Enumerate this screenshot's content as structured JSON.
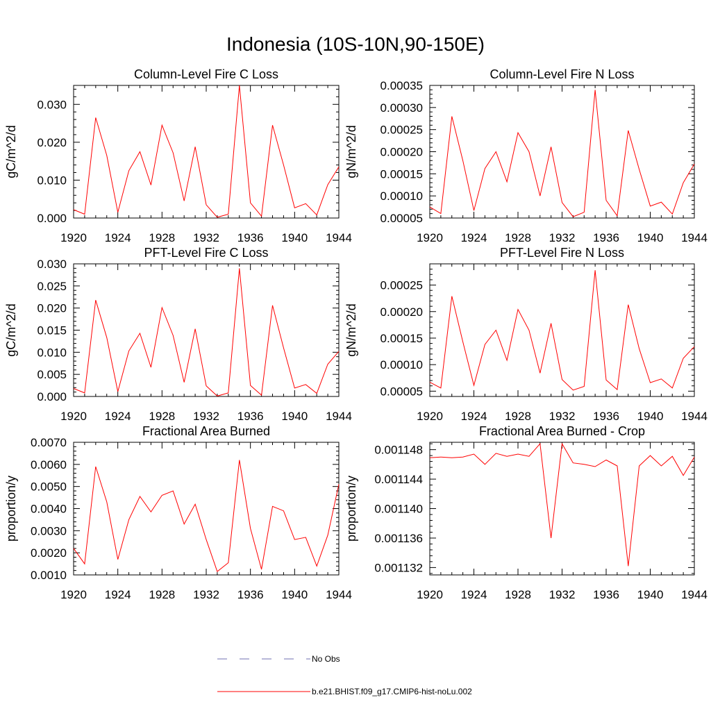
{
  "figure": {
    "title": "Indonesia (10S-10N,90-150E)"
  },
  "colors": {
    "model": "#ff0000",
    "obs": "#6f6fb0",
    "axis": "#000000"
  },
  "legend": {
    "items": [
      {
        "label": "No Obs",
        "style": "dashed",
        "color": "#6f6fb0"
      },
      {
        "label": "b.e21.BHIST.f09_g17.CMIP6-hist-noLu.002",
        "style": "solid",
        "color": "#ff0000"
      }
    ]
  },
  "chart_data": [
    {
      "type": "line",
      "title": "Column-Level Fire C Loss",
      "ylabel": "gC/m^2/d",
      "xlim": [
        1920,
        1944
      ],
      "ylim": [
        0.0,
        0.035
      ],
      "xticks": [
        1920,
        1924,
        1928,
        1932,
        1936,
        1940,
        1944
      ],
      "xtick_labels": [
        "1920",
        "1924",
        "1928",
        "1932",
        "1936",
        "1940",
        "1944"
      ],
      "yticks": [
        0.0,
        0.01,
        0.02,
        0.03
      ],
      "ytick_labels": [
        "0.000",
        "0.010",
        "0.020",
        "0.030"
      ],
      "x": [
        1920,
        1921,
        1922,
        1923,
        1924,
        1925,
        1926,
        1927,
        1928,
        1929,
        1930,
        1931,
        1932,
        1933,
        1934,
        1935,
        1936,
        1937,
        1938,
        1939,
        1940,
        1941,
        1942,
        1943,
        1944
      ],
      "series": [
        {
          "values": [
            0.0022,
            0.001,
            0.0265,
            0.0165,
            0.0015,
            0.0125,
            0.0175,
            0.0087,
            0.0245,
            0.0172,
            0.0045,
            0.0188,
            0.0035,
            0.0002,
            0.001,
            0.035,
            0.004,
            0.0005,
            0.0245,
            0.014,
            0.0027,
            0.0038,
            0.0008,
            0.0088,
            0.0135
          ]
        }
      ]
    },
    {
      "type": "line",
      "title": "Column-Level Fire N Loss",
      "ylabel": "gN/m^2/d",
      "xlim": [
        1920,
        1944
      ],
      "ylim": [
        5e-05,
        0.00035
      ],
      "xticks": [
        1920,
        1924,
        1928,
        1932,
        1936,
        1940,
        1944
      ],
      "xtick_labels": [
        "1920",
        "1924",
        "1928",
        "1932",
        "1936",
        "1940",
        "1944"
      ],
      "yticks": [
        5e-05,
        0.0001,
        0.00015,
        0.0002,
        0.00025,
        0.0003,
        0.00035
      ],
      "ytick_labels": [
        "0.00005",
        "0.00010",
        "0.00015",
        "0.00020",
        "0.00025",
        "0.00030",
        "0.00035"
      ],
      "x": [
        1920,
        1921,
        1922,
        1923,
        1924,
        1925,
        1926,
        1927,
        1928,
        1929,
        1930,
        1931,
        1932,
        1933,
        1934,
        1935,
        1936,
        1937,
        1938,
        1939,
        1940,
        1941,
        1942,
        1943,
        1944
      ],
      "series": [
        {
          "values": [
            7.5e-05,
            6e-05,
            0.00028,
            0.00018,
            6.7e-05,
            0.000162,
            0.0002,
            0.000132,
            0.000243,
            0.0002,
            0.0001,
            0.000211,
            8.5e-05,
            5.3e-05,
            6.3e-05,
            0.00034,
            9e-05,
            5.5e-05,
            0.000248,
            0.00016,
            7.7e-05,
            8.6e-05,
            5.9e-05,
            0.00013,
            0.000172
          ]
        }
      ]
    },
    {
      "type": "line",
      "title": "PFT-Level Fire C Loss",
      "ylabel": "gC/m^2/d",
      "xlim": [
        1920,
        1944
      ],
      "ylim": [
        0.0,
        0.03
      ],
      "xticks": [
        1920,
        1924,
        1928,
        1932,
        1936,
        1940,
        1944
      ],
      "xtick_labels": [
        "1920",
        "1924",
        "1928",
        "1932",
        "1936",
        "1940",
        "1944"
      ],
      "yticks": [
        0.0,
        0.005,
        0.01,
        0.015,
        0.02,
        0.025,
        0.03
      ],
      "ytick_labels": [
        "0.000",
        "0.005",
        "0.010",
        "0.015",
        "0.020",
        "0.025",
        "0.030"
      ],
      "x": [
        1920,
        1921,
        1922,
        1923,
        1924,
        1925,
        1926,
        1927,
        1928,
        1929,
        1930,
        1931,
        1932,
        1933,
        1934,
        1935,
        1936,
        1937,
        1938,
        1939,
        1940,
        1941,
        1942,
        1943,
        1944
      ],
      "series": [
        {
          "values": [
            0.0018,
            0.0008,
            0.0218,
            0.0133,
            0.0011,
            0.0103,
            0.0143,
            0.0066,
            0.0201,
            0.0138,
            0.0032,
            0.0153,
            0.0024,
            0.0001,
            0.0008,
            0.029,
            0.0025,
            0.0003,
            0.0206,
            0.011,
            0.0019,
            0.0027,
            0.0007,
            0.0073,
            0.0102
          ]
        }
      ]
    },
    {
      "type": "line",
      "title": "PFT-Level Fire N Loss",
      "ylabel": "gN/m^2/d",
      "xlim": [
        1920,
        1944
      ],
      "ylim": [
        4e-05,
        0.00029
      ],
      "xticks": [
        1920,
        1924,
        1928,
        1932,
        1936,
        1940,
        1944
      ],
      "xtick_labels": [
        "1920",
        "1924",
        "1928",
        "1932",
        "1936",
        "1940",
        "1944"
      ],
      "yticks": [
        5e-05,
        0.0001,
        0.00015,
        0.0002,
        0.00025
      ],
      "ytick_labels": [
        "0.00005",
        "0.00010",
        "0.00015",
        "0.00020",
        "0.00025"
      ],
      "x": [
        1920,
        1921,
        1922,
        1923,
        1924,
        1925,
        1926,
        1927,
        1928,
        1929,
        1930,
        1931,
        1932,
        1933,
        1934,
        1935,
        1936,
        1937,
        1938,
        1939,
        1940,
        1941,
        1942,
        1943,
        1944
      ],
      "series": [
        {
          "values": [
            6.7e-05,
            5.6e-05,
            0.000229,
            0.000143,
            6.1e-05,
            0.000138,
            0.000165,
            0.000108,
            0.000204,
            0.000165,
            8.4e-05,
            0.000178,
            7.2e-05,
            5.2e-05,
            5.9e-05,
            0.000278,
            7.1e-05,
            5.3e-05,
            0.000213,
            0.00013,
            6.6e-05,
            7.3e-05,
            5.6e-05,
            0.000112,
            0.000134
          ]
        }
      ]
    },
    {
      "type": "line",
      "title": "Fractional Area Burned",
      "ylabel": "proportion/y",
      "xlim": [
        1920,
        1944
      ],
      "ylim": [
        0.001,
        0.007
      ],
      "xticks": [
        1920,
        1924,
        1928,
        1932,
        1936,
        1940,
        1944
      ],
      "xtick_labels": [
        "1920",
        "1924",
        "1928",
        "1932",
        "1936",
        "1940",
        "1944"
      ],
      "yticks": [
        0.001,
        0.002,
        0.003,
        0.004,
        0.005,
        0.006,
        0.007
      ],
      "ytick_labels": [
        "0.0010",
        "0.0020",
        "0.0030",
        "0.0040",
        "0.0050",
        "0.0060",
        "0.0070"
      ],
      "x": [
        1920,
        1921,
        1922,
        1923,
        1924,
        1925,
        1926,
        1927,
        1928,
        1929,
        1930,
        1931,
        1932,
        1933,
        1934,
        1935,
        1936,
        1937,
        1938,
        1939,
        1940,
        1941,
        1942,
        1943,
        1944
      ],
      "series": [
        {
          "values": [
            0.0022,
            0.0015,
            0.0059,
            0.0043,
            0.0017,
            0.0035,
            0.00455,
            0.00385,
            0.0046,
            0.0048,
            0.0033,
            0.0042,
            0.0026,
            0.00115,
            0.00155,
            0.0062,
            0.0031,
            0.00125,
            0.0041,
            0.0039,
            0.0026,
            0.0027,
            0.0014,
            0.0028,
            0.0051
          ]
        }
      ]
    },
    {
      "type": "line",
      "title": "Fractional Area Burned - Crop",
      "ylabel": "proportion/y",
      "xlim": [
        1920,
        1944
      ],
      "ylim": [
        0.001131,
        0.001149
      ],
      "xticks": [
        1920,
        1924,
        1928,
        1932,
        1936,
        1940,
        1944
      ],
      "xtick_labels": [
        "1920",
        "1924",
        "1928",
        "1932",
        "1936",
        "1940",
        "1944"
      ],
      "yticks": [
        0.001132,
        0.001136,
        0.00114,
        0.001144,
        0.001148
      ],
      "ytick_labels": [
        "0.001132",
        "0.001136",
        "0.001140",
        "0.001144",
        "0.001148"
      ],
      "x": [
        1920,
        1921,
        1922,
        1923,
        1924,
        1925,
        1926,
        1927,
        1928,
        1929,
        1930,
        1931,
        1932,
        1933,
        1934,
        1935,
        1936,
        1937,
        1938,
        1939,
        1940,
        1941,
        1942,
        1943,
        1944
      ],
      "series": [
        {
          "values": [
            0.0011469,
            0.001147,
            0.0011469,
            0.001147,
            0.0011474,
            0.001146,
            0.0011475,
            0.0011471,
            0.0011474,
            0.0011471,
            0.0011488,
            0.001136,
            0.0011488,
            0.0011462,
            0.001146,
            0.0011457,
            0.0011466,
            0.0011458,
            0.0011322,
            0.0011458,
            0.0011472,
            0.0011458,
            0.0011471,
            0.0011445,
            0.001147
          ]
        }
      ]
    }
  ]
}
